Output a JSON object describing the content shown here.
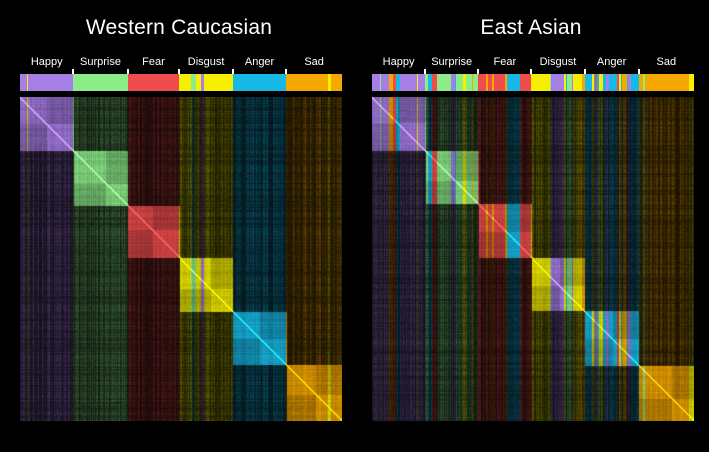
{
  "chart_data": [
    {
      "type": "heatmap",
      "title": "Western Caucasian",
      "categories": [
        "Happy",
        "Surprise",
        "Fear",
        "Disgust",
        "Anger",
        "Sad"
      ],
      "colors": {
        "Happy": "#a77de6",
        "Surprise": "#8cec88",
        "Fear": "#ef4d4d",
        "Disgust": "#f6f000",
        "Anger": "#18b8e6",
        "Sad": "#f5a800"
      },
      "group_fractions": [
        0.166,
        0.168,
        0.161,
        0.166,
        0.166,
        0.173
      ],
      "diagonal": "1.0 (self-similarity)",
      "grid": false
    },
    {
      "type": "heatmap",
      "title": "East Asian",
      "categories": [
        "Happy",
        "Surprise",
        "Fear",
        "Disgust",
        "Anger",
        "Sad"
      ],
      "colors": {
        "Happy": "#a77de6",
        "Surprise": "#8cec88",
        "Fear": "#ef4d4d",
        "Disgust": "#f6f000",
        "Anger": "#18b8e6",
        "Sad": "#f5a800"
      },
      "group_fractions": [
        0.165,
        0.165,
        0.165,
        0.165,
        0.168,
        0.172
      ],
      "diagonal": "1.0 (self-similarity)",
      "grid": false
    }
  ]
}
